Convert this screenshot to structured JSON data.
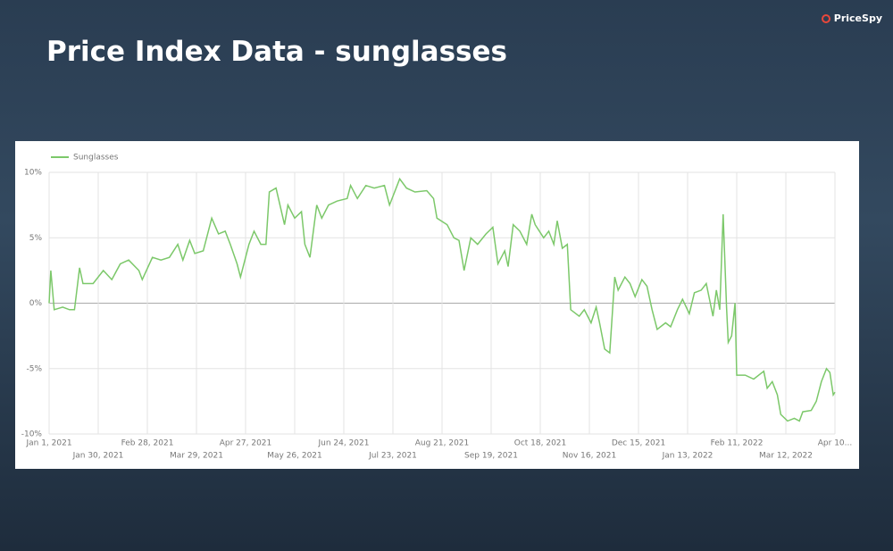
{
  "slide": {
    "title": "Price Index Data - sunglasses",
    "logo": "PriceSpy"
  },
  "chart_data": {
    "type": "line",
    "x": [
      "2021-01-01",
      "2021-01-02",
      "2021-01-04",
      "2021-01-09",
      "2021-01-13",
      "2021-01-16",
      "2021-01-19",
      "2021-01-21",
      "2021-01-27",
      "2021-02-02",
      "2021-02-07",
      "2021-02-12",
      "2021-02-17",
      "2021-02-23",
      "2021-02-25",
      "2021-03-03",
      "2021-03-08",
      "2021-03-13",
      "2021-03-18",
      "2021-03-21",
      "2021-03-25",
      "2021-03-28",
      "2021-04-02",
      "2021-04-07",
      "2021-04-11",
      "2021-04-15",
      "2021-04-18",
      "2021-04-22",
      "2021-04-24",
      "2021-04-29",
      "2021-05-02",
      "2021-05-06",
      "2021-05-09",
      "2021-05-11",
      "2021-05-15",
      "2021-05-20",
      "2021-05-22",
      "2021-05-26",
      "2021-05-30",
      "2021-06-01",
      "2021-06-04",
      "2021-06-08",
      "2021-06-11",
      "2021-06-15",
      "2021-06-20",
      "2021-06-26",
      "2021-06-28",
      "2021-07-02",
      "2021-07-07",
      "2021-07-12",
      "2021-07-18",
      "2021-07-21",
      "2021-07-24",
      "2021-07-27",
      "2021-07-31",
      "2021-08-05",
      "2021-08-12",
      "2021-08-16",
      "2021-08-18",
      "2021-08-24",
      "2021-08-28",
      "2021-08-31",
      "2021-09-03",
      "2021-09-07",
      "2021-09-11",
      "2021-09-16",
      "2021-09-20",
      "2021-09-23",
      "2021-09-27",
      "2021-09-29",
      "2021-10-02",
      "2021-10-06",
      "2021-10-10",
      "2021-10-13",
      "2021-10-15",
      "2021-10-20",
      "2021-10-23",
      "2021-10-26",
      "2021-10-28",
      "2021-10-31",
      "2021-11-03",
      "2021-11-05",
      "2021-11-10",
      "2021-11-13",
      "2021-11-17",
      "2021-11-20",
      "2021-11-22",
      "2021-11-25",
      "2021-11-28",
      "2021-12-01",
      "2021-12-03",
      "2021-12-07",
      "2021-12-10",
      "2021-12-13",
      "2021-12-17",
      "2021-12-20",
      "2021-12-23",
      "2021-12-26",
      "2021-12-31",
      "2022-01-03",
      "2022-01-07",
      "2022-01-10",
      "2022-01-14",
      "2022-01-17",
      "2022-01-21",
      "2022-01-24",
      "2022-01-28",
      "2022-01-30",
      "2022-02-01",
      "2022-02-03",
      "2022-02-05",
      "2022-02-06",
      "2022-02-08",
      "2022-02-10",
      "2022-02-11",
      "2022-02-16",
      "2022-02-21",
      "2022-02-27",
      "2022-03-01",
      "2022-03-04",
      "2022-03-07",
      "2022-03-09",
      "2022-03-13",
      "2022-03-17",
      "2022-03-20",
      "2022-03-22",
      "2022-03-27",
      "2022-03-30",
      "2022-04-02",
      "2022-04-05",
      "2022-04-07",
      "2022-04-09",
      "2022-04-10"
    ],
    "series": [
      {
        "name": "Sunglasses",
        "color": "#7cc86a",
        "values": [
          0,
          2.5,
          -0.5,
          -0.3,
          -0.5,
          -0.5,
          2.7,
          1.5,
          1.5,
          2.5,
          1.8,
          3.0,
          3.3,
          2.5,
          1.8,
          3.5,
          3.3,
          3.5,
          4.5,
          3.3,
          4.8,
          3.8,
          4.0,
          6.5,
          5.3,
          5.5,
          4.5,
          3.0,
          2.0,
          4.5,
          5.5,
          4.5,
          4.5,
          8.5,
          8.8,
          6.0,
          7.5,
          6.5,
          7.0,
          4.5,
          3.5,
          7.5,
          6.5,
          7.5,
          7.8,
          8.0,
          9.0,
          8.0,
          9.0,
          8.8,
          9.0,
          7.5,
          8.5,
          9.5,
          8.8,
          8.5,
          8.6,
          8.0,
          6.5,
          6.0,
          5.0,
          4.8,
          2.5,
          5.0,
          4.5,
          5.3,
          5.8,
          3.0,
          4.0,
          2.8,
          6.0,
          5.5,
          4.5,
          6.8,
          6.0,
          5.0,
          5.5,
          4.5,
          6.3,
          4.2,
          4.5,
          -0.5,
          -1.0,
          -0.5,
          -1.5,
          -0.3,
          -1.5,
          -3.5,
          -3.8,
          2.0,
          1.0,
          2.0,
          1.5,
          0.5,
          1.8,
          1.3,
          -0.5,
          -2.0,
          -1.5,
          -1.8,
          -0.5,
          0.3,
          -0.8,
          0.8,
          1.0,
          1.5,
          -1.0,
          1.0,
          -0.5,
          6.8,
          -0.3,
          -3.0,
          -2.5,
          0,
          -5.5,
          -5.5,
          -5.8,
          -5.2,
          -6.5,
          -6.0,
          -7.0,
          -8.5,
          -9.0,
          -8.8,
          -9.0,
          -8.3,
          -8.2,
          -7.5,
          -6.0,
          -5.0,
          -5.3,
          -7.0,
          -6.8
        ]
      }
    ],
    "xlim": [
      "2021-01-01",
      "2022-04-10"
    ],
    "xticks": [
      {
        "value": "2021-01-01",
        "label": "Jan 1, 2021"
      },
      {
        "value": "2021-01-30",
        "label": "Jan 30, 2021"
      },
      {
        "value": "2021-02-28",
        "label": "Feb 28, 2021"
      },
      {
        "value": "2021-03-29",
        "label": "Mar 29, 2021"
      },
      {
        "value": "2021-04-27",
        "label": "Apr 27, 2021"
      },
      {
        "value": "2021-05-26",
        "label": "May 26, 2021"
      },
      {
        "value": "2021-06-24",
        "label": "Jun 24, 2021"
      },
      {
        "value": "2021-07-23",
        "label": "Jul 23, 2021"
      },
      {
        "value": "2021-08-21",
        "label": "Aug 21, 2021"
      },
      {
        "value": "2021-09-19",
        "label": "Sep 19, 2021"
      },
      {
        "value": "2021-10-18",
        "label": "Oct 18, 2021"
      },
      {
        "value": "2021-11-16",
        "label": "Nov 16, 2021"
      },
      {
        "value": "2021-12-15",
        "label": "Dec 15, 2021"
      },
      {
        "value": "2022-01-13",
        "label": "Jan 13, 2022"
      },
      {
        "value": "2022-02-11",
        "label": "Feb 11, 2022"
      },
      {
        "value": "2022-03-12",
        "label": "Mar 12, 2022"
      },
      {
        "value": "2022-04-10",
        "label": "Apr 10..."
      }
    ],
    "ylim": [
      -10,
      10
    ],
    "yticks": [
      {
        "value": 10,
        "label": "10%"
      },
      {
        "value": 5,
        "label": "5%"
      },
      {
        "value": 0,
        "label": "0%"
      },
      {
        "value": -5,
        "label": "-5%"
      },
      {
        "value": -10,
        "label": "-10%"
      }
    ],
    "grid": true,
    "legend": "top-left"
  }
}
